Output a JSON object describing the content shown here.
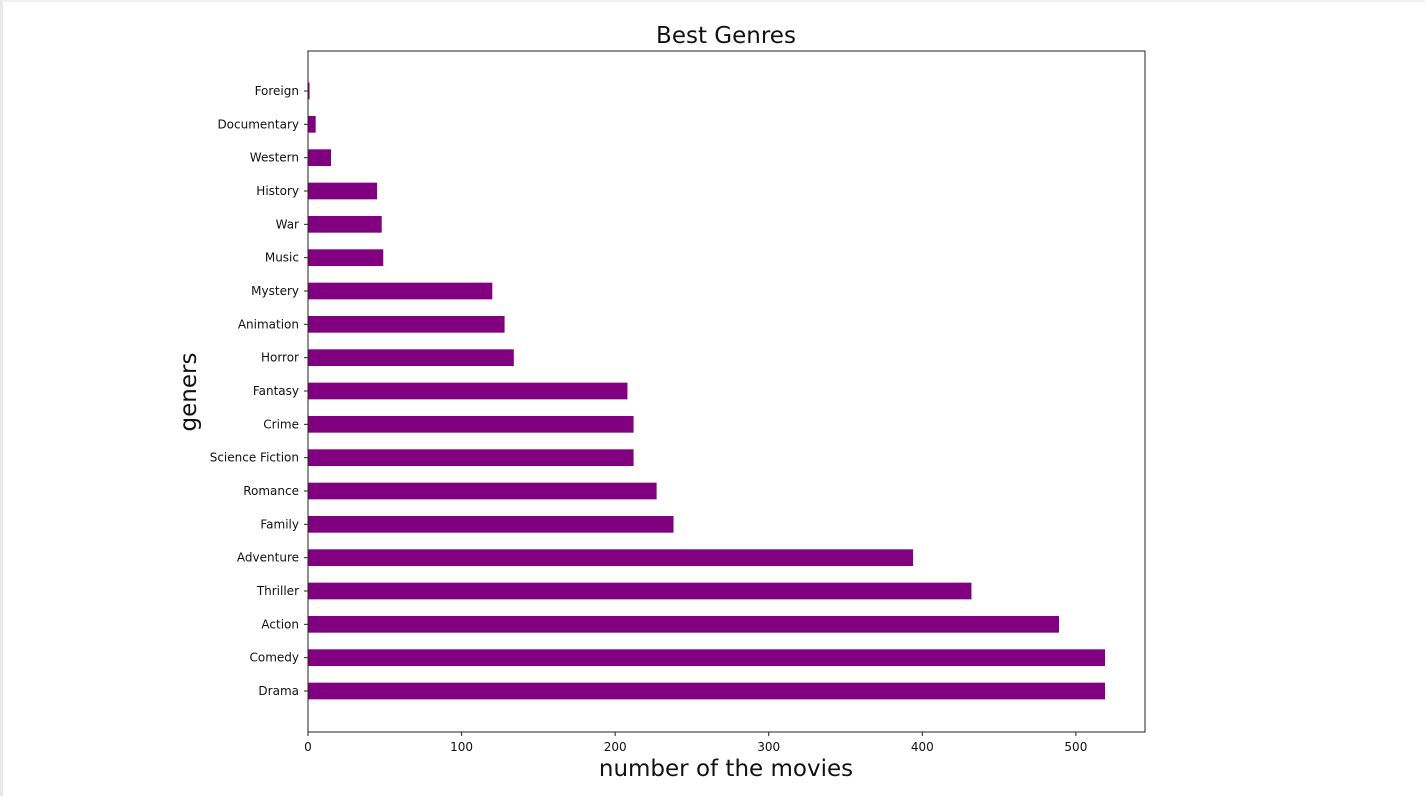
{
  "chart_data": {
    "type": "bar",
    "orientation": "horizontal",
    "title": "Best Genres",
    "xlabel": "number of the movies",
    "ylabel": "geners",
    "categories": [
      "Drama",
      "Comedy",
      "Action",
      "Thriller",
      "Adventure",
      "Family",
      "Romance",
      "Science Fiction",
      "Crime",
      "Fantasy",
      "Horror",
      "Animation",
      "Mystery",
      "Music",
      "War",
      "History",
      "Western",
      "Documentary",
      "Foreign"
    ],
    "values": [
      519,
      519,
      489,
      432,
      394,
      238,
      227,
      212,
      212,
      208,
      134,
      128,
      120,
      49,
      48,
      45,
      15,
      5,
      1
    ],
    "xlim": [
      0,
      545
    ],
    "xticks": [
      0,
      100,
      200,
      300,
      400,
      500
    ],
    "bar_color": "#800080",
    "grid": false,
    "legend": "none"
  }
}
